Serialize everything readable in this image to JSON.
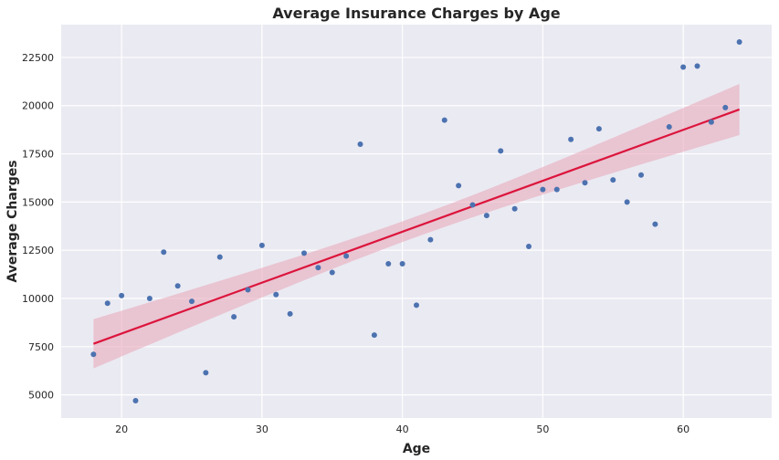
{
  "chart_data": {
    "type": "scatter",
    "title": "Average Insurance Charges by Age",
    "xlabel": "Age",
    "ylabel": "Average Charges",
    "xlim": [
      15.7,
      66.3
    ],
    "ylim": [
      3800,
      24200
    ],
    "x_ticks": [
      20,
      30,
      40,
      50,
      60
    ],
    "y_ticks": [
      5000,
      7500,
      10000,
      12500,
      15000,
      17500,
      20000,
      22500
    ],
    "grid": true,
    "legend": "none",
    "series": [
      {
        "points": [
          [
            18,
            7100
          ],
          [
            19,
            9750
          ],
          [
            20,
            10150
          ],
          [
            21,
            4700
          ],
          [
            22,
            10000
          ],
          [
            23,
            12400
          ],
          [
            24,
            10650
          ],
          [
            25,
            9850
          ],
          [
            26,
            6150
          ],
          [
            27,
            12150
          ],
          [
            28,
            9050
          ],
          [
            29,
            10450
          ],
          [
            30,
            12750
          ],
          [
            31,
            10200
          ],
          [
            32,
            9200
          ],
          [
            33,
            12350
          ],
          [
            34,
            11600
          ],
          [
            35,
            11350
          ],
          [
            36,
            12200
          ],
          [
            37,
            18000
          ],
          [
            38,
            8100
          ],
          [
            39,
            11800
          ],
          [
            40,
            11800
          ],
          [
            41,
            9650
          ],
          [
            42,
            13050
          ],
          [
            43,
            19250
          ],
          [
            44,
            15850
          ],
          [
            45,
            14850
          ],
          [
            46,
            14300
          ],
          [
            47,
            17650
          ],
          [
            48,
            14650
          ],
          [
            49,
            12700
          ],
          [
            50,
            15650
          ],
          [
            51,
            15650
          ],
          [
            52,
            18250
          ],
          [
            53,
            16000
          ],
          [
            54,
            18800
          ],
          [
            55,
            16150
          ],
          [
            56,
            15000
          ],
          [
            57,
            16400
          ],
          [
            58,
            13850
          ],
          [
            59,
            18900
          ],
          [
            60,
            22000
          ],
          [
            61,
            22050
          ],
          [
            62,
            19150
          ],
          [
            63,
            19900
          ],
          [
            64,
            23300
          ]
        ]
      }
    ],
    "regression": {
      "x_range": [
        18,
        64
      ],
      "y_start": 7650,
      "y_end": 19800,
      "ci_lower_start": 6300,
      "ci_upper_start": 8850,
      "ci_lower_end": 18300,
      "ci_upper_end": 20950
    },
    "colors": {
      "background": "#eaeaf2",
      "grid": "#ffffff",
      "point": "#4c72b0",
      "line": "#dc143c",
      "band": "#e8a4b6"
    }
  }
}
